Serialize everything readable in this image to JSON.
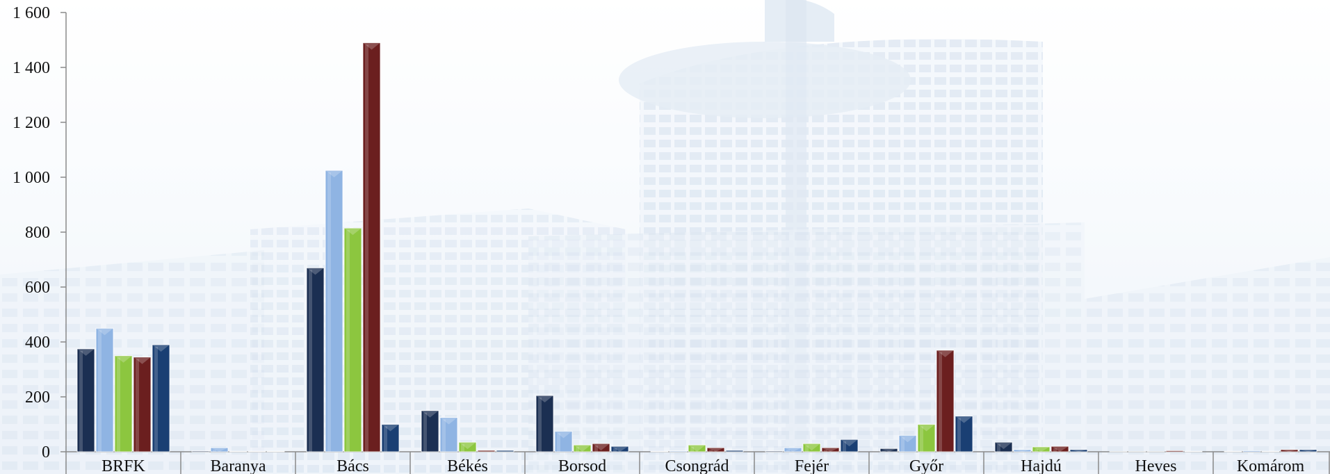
{
  "chart_data": {
    "type": "bar",
    "categories": [
      "BRFK",
      "Baranya",
      "Bács",
      "Békés",
      "Borsod",
      "Csongrád",
      "Fejér",
      "Győr",
      "Hajdú",
      "Heves",
      "Komárom"
    ],
    "series": [
      {
        "color": "#1b2f52",
        "values": [
          375,
          3,
          670,
          150,
          205,
          2,
          3,
          12,
          35,
          1,
          2
        ]
      },
      {
        "color": "#8fb4e3",
        "values": [
          450,
          15,
          1025,
          125,
          75,
          3,
          15,
          60,
          8,
          1,
          4
        ]
      },
      {
        "color": "#8cc63f",
        "values": [
          350,
          2,
          815,
          35,
          25,
          25,
          30,
          100,
          18,
          1,
          2
        ]
      },
      {
        "color": "#6b1f1f",
        "values": [
          345,
          2,
          1490,
          5,
          30,
          15,
          15,
          370,
          20,
          4,
          8
        ]
      },
      {
        "color": "#1a3f73",
        "values": [
          390,
          2,
          100,
          5,
          20,
          5,
          45,
          130,
          8,
          2,
          8
        ]
      }
    ],
    "y_ticks": [
      "1 600",
      "1 400",
      "1 200",
      "1 000",
      "800",
      "600",
      "400",
      "200",
      "0"
    ],
    "ylim": [
      0,
      1600
    ],
    "grid": false,
    "xlabel": "",
    "ylabel": ""
  }
}
